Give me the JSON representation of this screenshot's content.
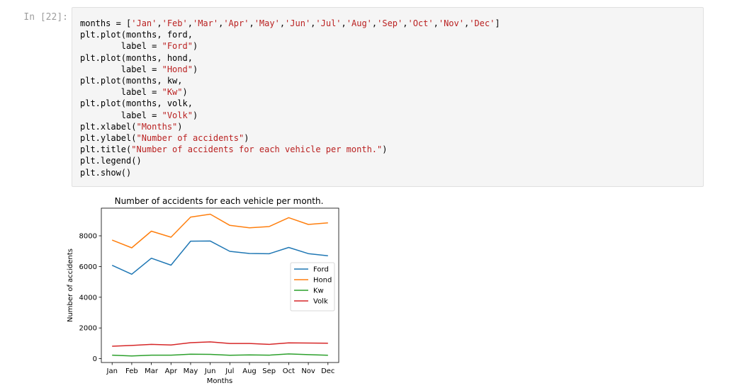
{
  "cell": {
    "prompt": "In [22]:",
    "code_lines": [
      [
        {
          "t": "months = [",
          "c": "p"
        },
        {
          "t": "'Jan'",
          "c": "s"
        },
        {
          "t": ",",
          "c": "p"
        },
        {
          "t": "'Feb'",
          "c": "s"
        },
        {
          "t": ",",
          "c": "p"
        },
        {
          "t": "'Mar'",
          "c": "s"
        },
        {
          "t": ",",
          "c": "p"
        },
        {
          "t": "'Apr'",
          "c": "s"
        },
        {
          "t": ",",
          "c": "p"
        },
        {
          "t": "'May'",
          "c": "s"
        },
        {
          "t": ",",
          "c": "p"
        },
        {
          "t": "'Jun'",
          "c": "s"
        },
        {
          "t": ",",
          "c": "p"
        },
        {
          "t": "'Jul'",
          "c": "s"
        },
        {
          "t": ",",
          "c": "p"
        },
        {
          "t": "'Aug'",
          "c": "s"
        },
        {
          "t": ",",
          "c": "p"
        },
        {
          "t": "'Sep'",
          "c": "s"
        },
        {
          "t": ",",
          "c": "p"
        },
        {
          "t": "'Oct'",
          "c": "s"
        },
        {
          "t": ",",
          "c": "p"
        },
        {
          "t": "'Nov'",
          "c": "s"
        },
        {
          "t": ",",
          "c": "p"
        },
        {
          "t": "'Dec'",
          "c": "s"
        },
        {
          "t": "]",
          "c": "p"
        }
      ],
      [
        {
          "t": "plt.plot(months, ford,",
          "c": "p"
        }
      ],
      [
        {
          "t": "        label = ",
          "c": "p"
        },
        {
          "t": "\"Ford\"",
          "c": "s"
        },
        {
          "t": ")",
          "c": "p"
        }
      ],
      [
        {
          "t": "plt.plot(months, hond,",
          "c": "p"
        }
      ],
      [
        {
          "t": "        label = ",
          "c": "p"
        },
        {
          "t": "\"Hond\"",
          "c": "s"
        },
        {
          "t": ")",
          "c": "p"
        }
      ],
      [
        {
          "t": "plt.plot(months, kw,",
          "c": "p"
        }
      ],
      [
        {
          "t": "        label = ",
          "c": "p"
        },
        {
          "t": "\"Kw\"",
          "c": "s"
        },
        {
          "t": ")",
          "c": "p"
        }
      ],
      [
        {
          "t": "plt.plot(months, volk,",
          "c": "p"
        }
      ],
      [
        {
          "t": "        label = ",
          "c": "p"
        },
        {
          "t": "\"Volk\"",
          "c": "s"
        },
        {
          "t": ")",
          "c": "p"
        }
      ],
      [
        {
          "t": "plt.xlabel(",
          "c": "p"
        },
        {
          "t": "\"Months\"",
          "c": "s"
        },
        {
          "t": ")",
          "c": "p"
        }
      ],
      [
        {
          "t": "plt.ylabel(",
          "c": "p"
        },
        {
          "t": "\"Number of accidents\"",
          "c": "s"
        },
        {
          "t": ")",
          "c": "p"
        }
      ],
      [
        {
          "t": "plt.title(",
          "c": "p"
        },
        {
          "t": "\"Number of accidents for each vehicle per month.\"",
          "c": "s"
        },
        {
          "t": ")",
          "c": "p"
        }
      ],
      [
        {
          "t": "plt.legend()",
          "c": "p"
        }
      ],
      [
        {
          "t": "plt.show()",
          "c": "p"
        }
      ]
    ]
  },
  "chart_data": {
    "type": "line",
    "title": "Number of accidents for each vehicle per month.",
    "xlabel": "Months",
    "ylabel": "Number of accidents",
    "categories": [
      "Jan",
      "Feb",
      "Mar",
      "Apr",
      "May",
      "Jun",
      "Jul",
      "Aug",
      "Sep",
      "Oct",
      "Nov",
      "Dec"
    ],
    "ylim": [
      -250,
      9800
    ],
    "yticks": [
      0,
      2000,
      4000,
      6000,
      8000
    ],
    "ytick_labels": [
      "0",
      "2000",
      "4000",
      "6000",
      "8000"
    ],
    "grid": false,
    "legend_position": "center-right",
    "series": [
      {
        "name": "Ford",
        "color": "#1f77b4",
        "values": [
          6080,
          5500,
          6540,
          6090,
          7650,
          7660,
          6990,
          6850,
          6830,
          7240,
          6840,
          6700
        ]
      },
      {
        "name": "Hond",
        "color": "#ff7f0e",
        "values": [
          7720,
          7220,
          8300,
          7910,
          9220,
          9410,
          8680,
          8520,
          8600,
          9180,
          8740,
          8840
        ]
      },
      {
        "name": "Kw",
        "color": "#2ca02c",
        "values": [
          230,
          180,
          230,
          230,
          290,
          280,
          220,
          250,
          230,
          310,
          260,
          220
        ]
      },
      {
        "name": "Volk",
        "color": "#d62728",
        "values": [
          810,
          860,
          930,
          890,
          1040,
          1090,
          990,
          990,
          930,
          1030,
          1020,
          1010
        ]
      }
    ]
  }
}
